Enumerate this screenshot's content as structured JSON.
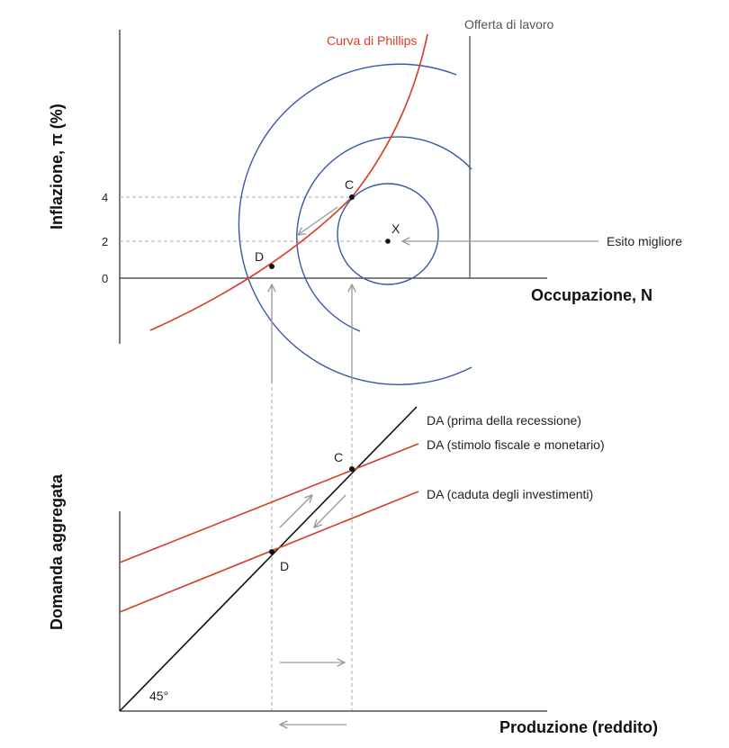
{
  "top_panel": {
    "y_axis_title": "Inflazione, π (%)",
    "x_axis_title": "Occupazione, N",
    "y_ticks": [
      "4",
      "2",
      "0"
    ],
    "phillips_label": "Curva di Phillips",
    "labour_supply_label": "Offerta di lavoro",
    "best_outcome_label": "Esito migliore",
    "points": {
      "C": "C",
      "D": "D",
      "X": "X"
    }
  },
  "bottom_panel": {
    "y_axis_title": "Domanda aggregata",
    "x_axis_title": "Produzione (reddito)",
    "line_45_label": "45°",
    "ad_before_label": "DA (prima della recessione)",
    "ad_stimulus_label": "DA (stimolo fiscale e monetario)",
    "ad_fall_label": "DA (caduta degli investimenti)",
    "points": {
      "C": "C",
      "D": "D"
    }
  },
  "colors": {
    "phillips": "#d8402d",
    "ad_lines": "#d8402d",
    "indifference": "#3a57a8",
    "axes": "#333333",
    "arrows": "#999999",
    "guides": "#aaaaaa"
  }
}
